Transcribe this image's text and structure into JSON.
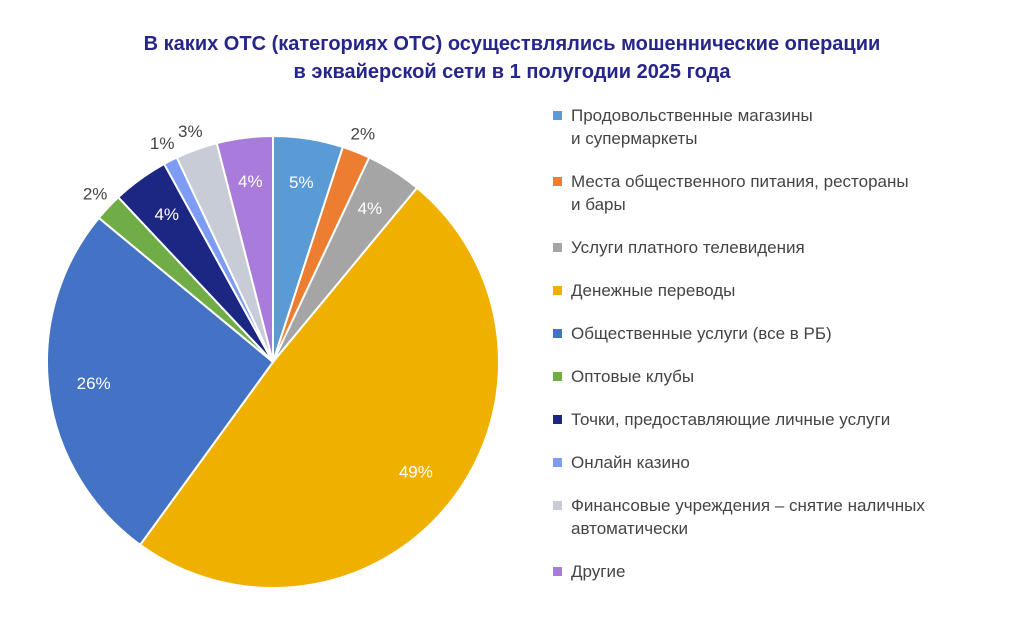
{
  "chart_data": {
    "type": "pie",
    "title": "В каких ОТС (категориях ОТС) осуществлялись мошеннические операции\nв эквайерской сети в 1 полугодии 2025 года",
    "categories": [
      "Продовольственные магазины\nи супермаркеты",
      "Места общественного питания, рестораны\nи бары",
      "Услуги платного телевидения",
      "Денежные переводы",
      "Общественные услуги (все в РБ)",
      "Оптовые клубы",
      "Точки, предоставляющие личные услуги",
      "Онлайн казино",
      "Финансовые учреждения – снятие наличных\nавтоматически",
      "Другие"
    ],
    "values": [
      5,
      2,
      4,
      49,
      26,
      2,
      4,
      1,
      3,
      4
    ],
    "value_labels": [
      "5%",
      "2%",
      "4%",
      "49%",
      "26%",
      "2%",
      "4%",
      "1%",
      "3%",
      "4%"
    ],
    "colors": [
      "#5b9bd5",
      "#ed7d31",
      "#a5a5a5",
      "#f0b000",
      "#4472c4",
      "#70ad47",
      "#1c2683",
      "#7f9cf5",
      "#c8ccd6",
      "#a97bdb"
    ]
  }
}
